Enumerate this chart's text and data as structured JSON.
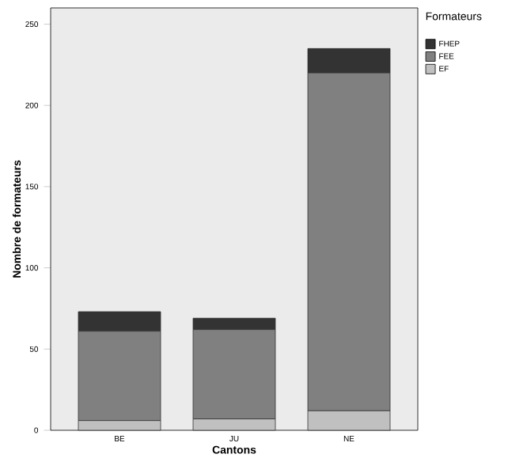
{
  "chart_data": {
    "type": "bar",
    "stacked": true,
    "xlabel": "Cantons",
    "ylabel": "Nombre de formateurs",
    "legend_title": "Formateurs",
    "categories": [
      "BE",
      "JU",
      "NE"
    ],
    "series": [
      {
        "name": "EF",
        "color": "#c0c0c0",
        "values": [
          6,
          7,
          12
        ]
      },
      {
        "name": "FEE",
        "color": "#808080",
        "values": [
          55,
          55,
          208
        ]
      },
      {
        "name": "FHEP",
        "color": "#333333",
        "values": [
          12,
          7,
          15
        ]
      }
    ],
    "ylim": [
      0,
      260
    ],
    "yticks": [
      0,
      50,
      100,
      150,
      200,
      250
    ],
    "grid": false,
    "legend": "top right"
  }
}
